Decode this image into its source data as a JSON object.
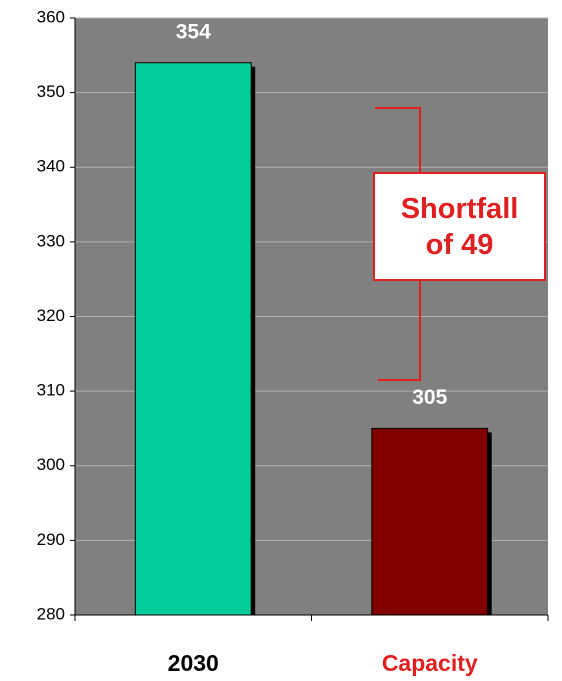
{
  "chart_data": {
    "type": "bar",
    "categories": [
      "2030",
      "Capacity"
    ],
    "values": [
      354,
      305
    ],
    "colors": [
      "#00cc99",
      "#800000"
    ],
    "category_label_colors": [
      "#000000",
      "#e02020"
    ],
    "ylim": [
      280,
      360
    ],
    "yticks": [
      280,
      290,
      300,
      310,
      320,
      330,
      340,
      350,
      360
    ],
    "grid": true,
    "annotation": "Shortfall of 49"
  }
}
